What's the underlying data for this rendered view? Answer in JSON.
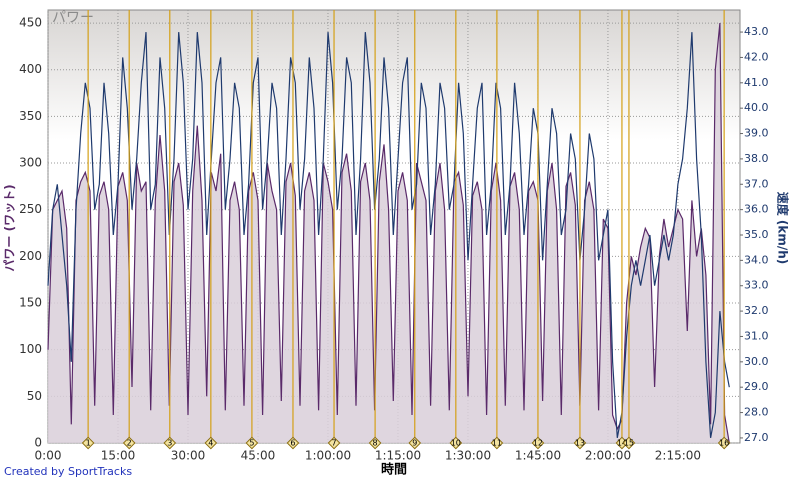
{
  "chart_data": {
    "type": "line",
    "title": "パワー",
    "x_label": "時間",
    "y_label": "パワー (ワット)",
    "y2_label": "速度 (km/h)",
    "credit": "Created by SportTracks",
    "xlim": [
      0,
      148.3
    ],
    "xticks": [
      {
        "value": 0,
        "label": "0:00"
      },
      {
        "value": 15,
        "label": "15:00"
      },
      {
        "value": 30,
        "label": "30:00"
      },
      {
        "value": 45,
        "label": "45:00"
      },
      {
        "value": 60,
        "label": "1:00:00"
      },
      {
        "value": 75,
        "label": "1:15:00"
      },
      {
        "value": 90,
        "label": "1:30:00"
      },
      {
        "value": 105,
        "label": "1:45:00"
      },
      {
        "value": 120,
        "label": "2:00:00"
      },
      {
        "value": 135,
        "label": "2:15:00"
      }
    ],
    "ylim": [
      0,
      464
    ],
    "yticks": [
      0,
      50,
      100,
      150,
      200,
      250,
      300,
      350,
      400,
      450
    ],
    "y2lim": [
      26.8,
      43.87
    ],
    "y2ticks": [
      {
        "value": 27,
        "label": "27.0"
      },
      {
        "value": 28,
        "label": "28.0"
      },
      {
        "value": 29,
        "label": "29.0"
      },
      {
        "value": 30,
        "label": "30.0"
      },
      {
        "value": 31,
        "label": "31.0"
      },
      {
        "value": 32,
        "label": "32.0"
      },
      {
        "value": 33,
        "label": "33.0"
      },
      {
        "value": 34,
        "label": "34.0"
      },
      {
        "value": 35,
        "label": "35.0"
      },
      {
        "value": 36,
        "label": "36.0"
      },
      {
        "value": 37,
        "label": "37.0"
      },
      {
        "value": 38,
        "label": "38.0"
      },
      {
        "value": 39,
        "label": "39.0"
      },
      {
        "value": 40,
        "label": "40.0"
      },
      {
        "value": 41,
        "label": "41.0"
      },
      {
        "value": 42,
        "label": "42.0"
      },
      {
        "value": 43,
        "label": "43.0"
      }
    ],
    "grid": true,
    "x": [
      0,
      1,
      2,
      3,
      4,
      5,
      6,
      7,
      8,
      9,
      10,
      11,
      12,
      13,
      14,
      15,
      16,
      17,
      18,
      19,
      20,
      21,
      22,
      23,
      24,
      25,
      26,
      27,
      28,
      29,
      30,
      31,
      32,
      33,
      34,
      35,
      36,
      37,
      38,
      39,
      40,
      41,
      42,
      43,
      44,
      45,
      46,
      47,
      48,
      49,
      50,
      51,
      52,
      53,
      54,
      55,
      56,
      57,
      58,
      59,
      60,
      61,
      62,
      63,
      64,
      65,
      66,
      67,
      68,
      69,
      70,
      71,
      72,
      73,
      74,
      75,
      76,
      77,
      78,
      79,
      80,
      81,
      82,
      83,
      84,
      85,
      86,
      87,
      88,
      89,
      90,
      91,
      92,
      93,
      94,
      95,
      96,
      97,
      98,
      99,
      100,
      101,
      102,
      103,
      104,
      105,
      106,
      107,
      108,
      109,
      110,
      111,
      112,
      113,
      114,
      115,
      116,
      117,
      118,
      119,
      120,
      121,
      122,
      123,
      124,
      125,
      126,
      127,
      128,
      129,
      130,
      131,
      132,
      133,
      134,
      135,
      136,
      137,
      138,
      139,
      140,
      141,
      142,
      143,
      144,
      145,
      146
    ],
    "series": [
      {
        "name": "パワー",
        "color": "#5a2a6a",
        "fill": "#d9cfd9",
        "axis": "y",
        "area": true,
        "values": [
          100,
          250,
          260,
          270,
          230,
          20,
          260,
          280,
          290,
          270,
          40,
          265,
          280,
          250,
          30,
          275,
          290,
          260,
          60,
          300,
          270,
          280,
          35,
          260,
          330,
          270,
          40,
          280,
          300,
          255,
          30,
          270,
          340,
          260,
          50,
          290,
          270,
          310,
          35,
          260,
          280,
          250,
          40,
          270,
          290,
          260,
          30,
          300,
          270,
          250,
          45,
          280,
          300,
          265,
          40,
          270,
          290,
          260,
          35,
          300,
          280,
          250,
          30,
          290,
          310,
          270,
          40,
          280,
          300,
          260,
          35,
          280,
          320,
          250,
          45,
          270,
          290,
          260,
          30,
          300,
          280,
          260,
          40,
          270,
          300,
          250,
          35,
          280,
          290,
          255,
          50,
          265,
          280,
          250,
          30,
          270,
          300,
          260,
          40,
          275,
          290,
          250,
          35,
          270,
          280,
          260,
          45,
          270,
          300,
          250,
          30,
          275,
          290,
          255,
          40,
          260,
          280,
          250,
          35,
          240,
          230,
          30,
          15,
          25,
          150,
          200,
          180,
          210,
          230,
          220,
          60,
          200,
          240,
          210,
          230,
          250,
          240,
          120,
          260,
          200,
          230,
          180,
          20,
          400,
          450,
          30,
          0
        ]
      },
      {
        "name": "速度",
        "color": "#1f3a6e",
        "axis": "y2",
        "values": [
          33,
          36,
          37,
          35,
          33,
          30,
          36,
          39,
          41,
          40,
          36,
          37,
          41,
          39,
          35,
          37,
          42,
          40,
          36,
          38,
          41,
          43,
          36,
          37,
          42,
          40,
          35,
          38,
          43,
          41,
          36,
          38,
          43,
          41,
          35,
          38,
          41,
          42,
          36,
          38,
          41,
          40,
          35,
          37,
          41,
          42,
          36,
          38,
          41,
          40,
          35,
          38,
          42,
          41,
          36,
          38,
          42,
          40,
          35,
          38,
          43,
          41,
          36,
          38,
          42,
          41,
          35,
          38,
          43,
          41,
          36,
          38,
          42,
          40,
          35,
          38,
          41,
          42,
          36,
          37,
          41,
          40,
          35,
          37,
          41,
          40,
          36,
          37,
          41,
          39,
          34,
          37,
          40,
          41,
          35,
          37,
          41,
          40,
          35,
          37,
          41,
          39,
          35,
          37,
          40,
          39,
          34,
          37,
          40,
          39,
          35,
          36,
          39,
          38,
          34,
          36,
          39,
          38,
          34,
          35,
          36,
          30,
          27,
          28,
          31,
          33,
          34,
          33,
          34,
          35,
          33,
          34,
          35,
          34,
          35,
          37,
          38,
          40,
          43,
          38,
          35,
          30,
          27,
          28,
          32,
          30,
          29
        ]
      }
    ],
    "laps": {
      "color": "#d4a017",
      "x": [
        8.6,
        17.4,
        26.1,
        34.9,
        43.7,
        52.5,
        61.3,
        70.1,
        78.6,
        87.4,
        96.2,
        105.0,
        114.0,
        123.0,
        124.5,
        144.9
      ],
      "labels": [
        "1",
        "2",
        "3",
        "4",
        "5",
        "6",
        "7",
        "8",
        "9",
        "10",
        "11",
        "12",
        "13",
        "14",
        "15",
        "16"
      ]
    }
  }
}
